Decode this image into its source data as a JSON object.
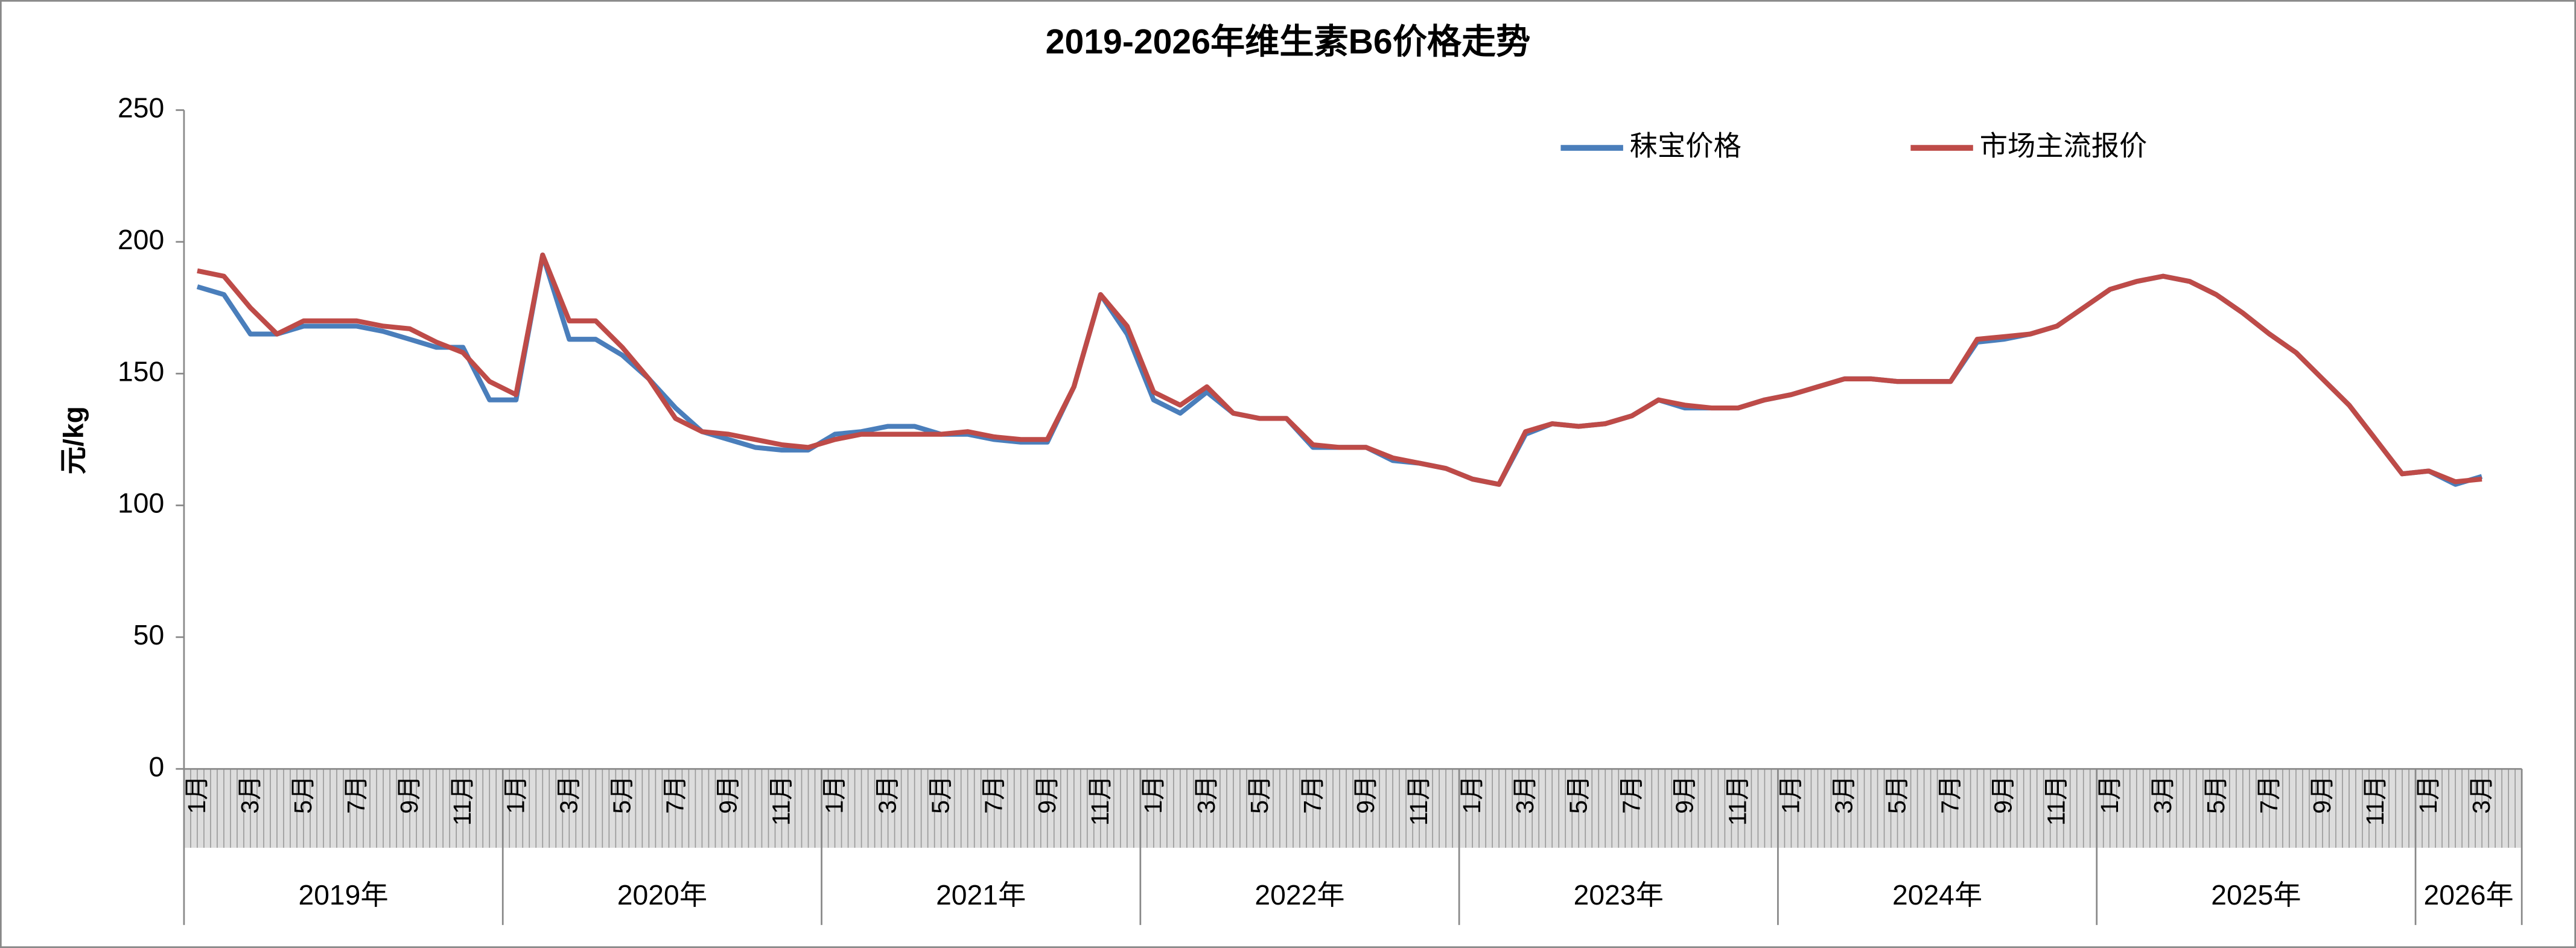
{
  "chart_data": {
    "type": "line",
    "title": "2019-2026年维生素B6价格走势",
    "y_label": "元/kg",
    "categories": [
      "1月",
      null,
      "3月",
      null,
      "5月",
      null,
      "7月",
      null,
      "9月",
      null,
      "11月",
      null,
      "1月",
      null,
      "3月",
      null,
      "5月",
      null,
      "7月",
      null,
      "9月",
      null,
      "11月",
      null,
      "1月",
      null,
      "3月",
      null,
      "5月",
      null,
      "7月",
      null,
      "9月",
      null,
      "11月",
      null,
      "1月",
      null,
      "3月",
      null,
      "5月",
      null,
      "7月",
      null,
      "9月",
      null,
      "11月",
      null,
      "1月",
      null,
      "3月",
      null,
      "5月",
      null,
      "7月",
      null,
      "9月",
      null,
      "11月",
      null,
      "1月",
      null,
      "3月",
      null,
      "5月",
      null,
      "7月",
      null,
      "9月",
      null,
      "11月",
      null,
      "1月",
      null,
      "3月",
      null,
      "5月",
      null,
      "7月",
      null,
      "9月",
      null,
      "11月",
      null,
      "1月",
      null,
      "3月",
      null
    ],
    "year_labels": [
      "2019年",
      "2020年",
      "2021年",
      "2022年",
      "2023年",
      "2024年",
      "2025年",
      "2026年"
    ],
    "series": [
      {
        "name": "秣宝价格",
        "color": "#4a7ebb",
        "values": [
          183,
          180,
          165,
          165,
          168,
          168,
          168,
          166,
          163,
          160,
          160,
          140,
          140,
          195,
          163,
          163,
          157,
          148,
          137,
          128,
          125,
          122,
          121,
          121,
          127,
          128,
          130,
          130,
          127,
          127,
          125,
          124,
          124,
          145,
          180,
          165,
          140,
          135,
          143,
          135,
          133,
          133,
          122,
          122,
          122,
          117,
          116,
          114,
          110,
          108,
          127,
          131,
          130,
          131,
          134,
          140,
          137,
          137,
          137,
          140,
          142,
          145,
          148,
          148,
          147,
          147,
          147,
          162,
          163,
          165,
          168,
          175,
          182,
          185,
          187,
          185,
          180,
          173,
          165,
          158,
          148,
          138,
          125,
          112,
          113,
          108,
          111,
          null
        ]
      },
      {
        "name": "市场主流报价",
        "color": "#be4b48",
        "values": [
          189,
          187,
          175,
          165,
          170,
          170,
          170,
          168,
          167,
          162,
          158,
          147,
          142,
          195,
          170,
          170,
          160,
          148,
          133,
          128,
          127,
          125,
          123,
          122,
          125,
          127,
          127,
          127,
          127,
          128,
          126,
          125,
          125,
          145,
          180,
          168,
          143,
          138,
          145,
          135,
          133,
          133,
          123,
          122,
          122,
          118,
          116,
          114,
          110,
          108,
          128,
          131,
          130,
          131,
          134,
          140,
          138,
          137,
          137,
          140,
          142,
          145,
          148,
          148,
          147,
          147,
          147,
          163,
          164,
          165,
          168,
          175,
          182,
          185,
          187,
          185,
          180,
          173,
          165,
          158,
          148,
          138,
          125,
          112,
          113,
          109,
          110,
          null
        ]
      }
    ],
    "ylim": [
      0,
      250
    ],
    "yticks": [
      0,
      50,
      100,
      150,
      200,
      250
    ],
    "legend": "top-right"
  }
}
